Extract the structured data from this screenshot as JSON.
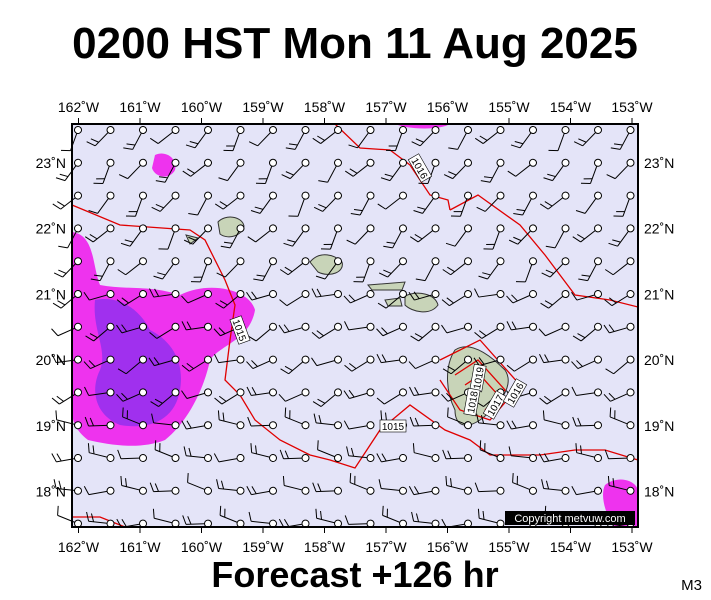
{
  "header": {
    "title": "0200 HST Mon 11 Aug 2025"
  },
  "footer": {
    "forecast": "Forecast +126 hr",
    "model": "M3"
  },
  "map": {
    "copyright": "Copyright metvuw.com",
    "lon_labels": [
      "162˚W",
      "161˚W",
      "160˚W",
      "159˚W",
      "158˚W",
      "157˚W",
      "156˚W",
      "155˚W",
      "154˚W",
      "153˚W"
    ],
    "lat_labels": [
      "23˚N",
      "22˚N",
      "21˚N",
      "20˚N",
      "19˚N",
      "18˚N"
    ],
    "isobar_labels": [
      "1016",
      "1015",
      "1015",
      "1019",
      "1018",
      "1017",
      "1016"
    ]
  }
}
